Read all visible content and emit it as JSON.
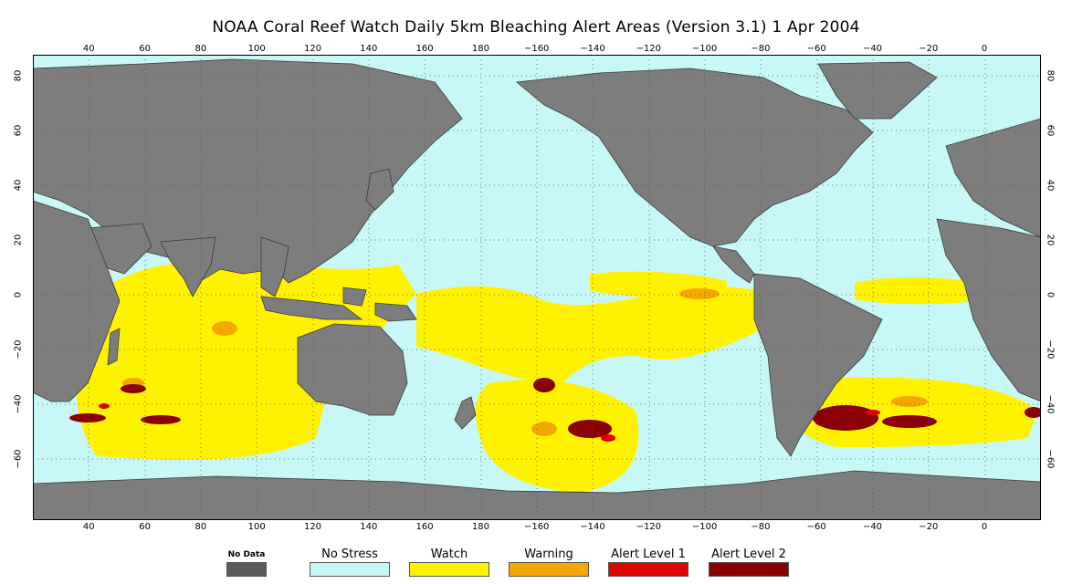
{
  "title": "NOAA Coral Reef Watch Daily 5km Bleaching Alert Areas (Version 3.1)  1 Apr 2004",
  "map": {
    "lon_ticks": [
      "40",
      "60",
      "80",
      "100",
      "120",
      "140",
      "160",
      "180",
      "−160",
      "−140",
      "−120",
      "−100",
      "−80",
      "−60",
      "−40",
      "−20",
      "0"
    ],
    "lat_ticks": [
      "80",
      "60",
      "40",
      "20",
      "0",
      "−20",
      "−40",
      "−60"
    ],
    "colors": {
      "ocean": "#c7f7f7",
      "land": "#7d7d7d",
      "no_data": "#5a5a5a",
      "watch": "#fff200",
      "warning": "#f5a700",
      "alert1": "#e20000",
      "alert2": "#8b0000"
    }
  },
  "legend": [
    {
      "label": "No Data",
      "color": "#5a5a5a"
    },
    {
      "label": "No Stress",
      "color": "#c7f7f7"
    },
    {
      "label": "Watch",
      "color": "#fff200"
    },
    {
      "label": "Warning",
      "color": "#f5a700"
    },
    {
      "label": "Alert Level 1",
      "color": "#e20000"
    },
    {
      "label": "Alert Level 2",
      "color": "#8b0000"
    }
  ]
}
